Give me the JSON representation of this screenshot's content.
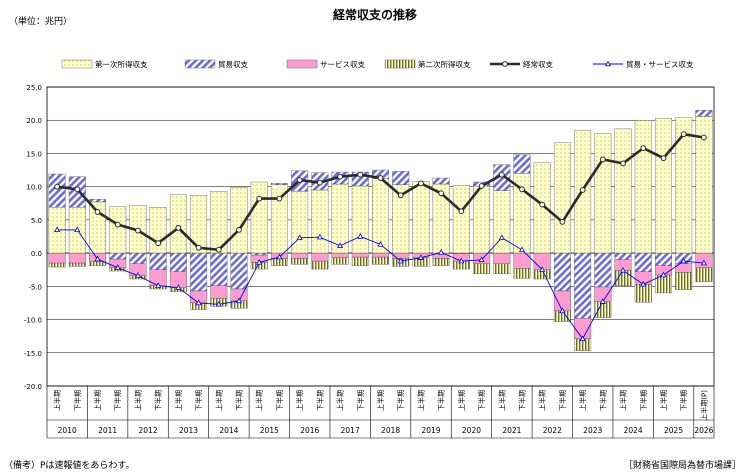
{
  "title": "経常収支の推移",
  "unit": "（単位：兆円）",
  "footnote": "（備考）Pは速報値をあらわす。",
  "source": "［財務省国際局為替市場課］",
  "legend": [
    {
      "key": "primary",
      "label": "第一次所得収支"
    },
    {
      "key": "trade",
      "label": "貿易収支"
    },
    {
      "key": "services",
      "label": "サービス収支"
    },
    {
      "key": "secondary",
      "label": "第二次所得収支"
    },
    {
      "key": "current",
      "label": "経常収支"
    },
    {
      "key": "goods_services",
      "label": "貿易・サービス収支"
    }
  ],
  "colors": {
    "primary_fill": "#ffffc6",
    "primary_dot": "#8a8a55",
    "trade_fill": "#ffffff",
    "trade_stripe": "#6a6ae0",
    "services_fill": "#ff9ccf",
    "secondary_fill": "#ffffd2",
    "secondary_stripe": "#6b6b20",
    "current_line": "#2b2b2b",
    "goods_services_line": "#0000ee",
    "grid": "#000000"
  },
  "chart_data": {
    "type": "bar",
    "stacked": true,
    "ylim": [
      -20,
      25
    ],
    "yticks": [
      "25.0",
      "20.0",
      "15.0",
      "10.0",
      "5.0",
      "0.0",
      "-5.0",
      "-10.0",
      "-15.0",
      "-20.0"
    ],
    "grid": true,
    "legend_position": "top",
    "period_labels": [
      "上半期",
      "下半期"
    ],
    "last_period_label": "上半期(P)",
    "years": [
      "2010",
      "2011",
      "2012",
      "2013",
      "2014",
      "2015",
      "2016",
      "2017",
      "2018",
      "2019",
      "2020",
      "2021",
      "2022",
      "2023",
      "2024",
      "2025",
      "2026"
    ],
    "periods": 33,
    "series": {
      "primary": [
        6.9,
        6.9,
        7.7,
        7.0,
        7.2,
        6.9,
        8.8,
        8.7,
        9.3,
        9.9,
        10.7,
        10.3,
        9.3,
        9.5,
        10.4,
        10.1,
        11.2,
        10.3,
        10.8,
        10.4,
        10.2,
        10.1,
        9.4,
        12.0,
        13.6,
        16.6,
        18.5,
        18.0,
        18.7,
        20.0,
        20.3,
        20.4,
        20.6
      ],
      "trade": [
        5.0,
        4.6,
        0.4,
        -0.9,
        -1.6,
        -2.5,
        -2.8,
        -5.7,
        -4.9,
        -5.4,
        -0.3,
        0.2,
        3.1,
        2.6,
        1.8,
        2.1,
        1.3,
        2.0,
        0.0,
        0.9,
        -0.1,
        0.6,
        3.9,
        2.8,
        0.0,
        -5.7,
        -9.8,
        -5.1,
        -1.0,
        -2.8,
        -1.9,
        -1.6,
        0.9
      ],
      "services": [
        -1.5,
        -1.5,
        -1.3,
        -1.3,
        -1.8,
        -2.4,
        -2.4,
        -1.8,
        -1.9,
        -1.8,
        -1.1,
        -0.8,
        -0.8,
        -1.2,
        -0.7,
        -0.6,
        -0.6,
        -0.8,
        -0.7,
        -0.8,
        -1.1,
        -1.6,
        -1.6,
        -2.3,
        -2.5,
        -3.0,
        -3.1,
        -2.2,
        -1.6,
        -1.9,
        -1.4,
        -1.3,
        -2.2
      ],
      "secondary": [
        -0.6,
        -0.5,
        -0.6,
        -0.5,
        -0.5,
        -0.5,
        -0.6,
        -1.0,
        -1.2,
        -1.1,
        -1.0,
        -1.1,
        -0.9,
        -1.2,
        -1.0,
        -1.3,
        -1.1,
        -1.2,
        -1.3,
        -1.1,
        -1.2,
        -1.5,
        -1.5,
        -1.5,
        -1.4,
        -1.6,
        -1.8,
        -2.4,
        -2.3,
        -2.7,
        -2.7,
        -2.6,
        -2.1
      ],
      "current": [
        10.0,
        9.6,
        6.2,
        4.3,
        3.4,
        1.5,
        3.8,
        0.8,
        0.5,
        3.5,
        8.2,
        8.2,
        11.0,
        10.6,
        11.5,
        11.8,
        11.3,
        8.7,
        10.5,
        9.0,
        6.3,
        10.1,
        11.8,
        9.6,
        7.3,
        4.7,
        9.5,
        14.1,
        13.5,
        15.8,
        14.3,
        17.9,
        17.4
      ],
      "goods_services": [
        3.5,
        3.5,
        -0.9,
        -2.2,
        -3.4,
        -4.9,
        -5.2,
        -7.5,
        -7.7,
        -7.2,
        -1.4,
        -0.6,
        2.3,
        2.4,
        1.1,
        2.5,
        1.3,
        -1.2,
        -0.7,
        0.1,
        -1.2,
        -1.0,
        2.3,
        0.5,
        -2.5,
        -8.7,
        -12.9,
        -7.3,
        -2.6,
        -4.7,
        -3.3,
        -1.2,
        -1.5
      ]
    }
  }
}
